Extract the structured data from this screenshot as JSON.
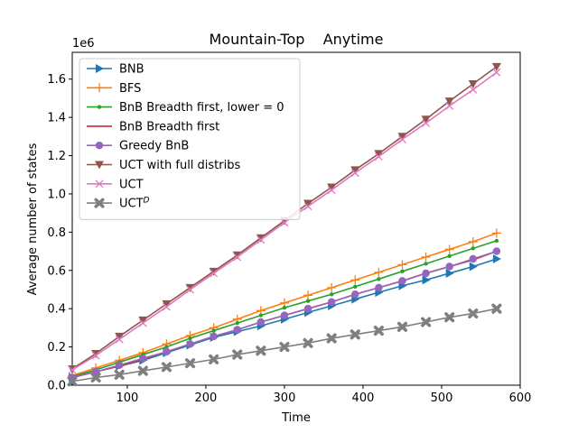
{
  "chart_data": {
    "type": "line",
    "title": "Mountain-Top    Anytime",
    "xlabel": "Time",
    "ylabel": "Average number of states",
    "y_multiplier_label": "1e6",
    "xlim": [
      30,
      600
    ],
    "ylim": [
      0,
      1.74
    ],
    "xticks": [
      100,
      200,
      300,
      400,
      500,
      600
    ],
    "yticks": [
      0.0,
      0.2,
      0.4,
      0.6,
      0.8,
      1.0,
      1.2,
      1.4,
      1.6
    ],
    "ytick_labels": [
      "0.0",
      "0.2",
      "0.4",
      "0.6",
      "0.8",
      "1.0",
      "1.2",
      "1.4",
      "1.6"
    ],
    "grid": false,
    "legend_position": "upper-left",
    "x": [
      30,
      60,
      90,
      120,
      150,
      180,
      210,
      240,
      270,
      300,
      330,
      360,
      390,
      420,
      450,
      480,
      510,
      540,
      570
    ],
    "series": [
      {
        "name": "BNB",
        "legend_text": "BNB",
        "color": "#1f77b4",
        "marker": "triangle-right",
        "values": [
          0.04,
          0.07,
          0.1,
          0.13,
          0.17,
          0.21,
          0.25,
          0.28,
          0.31,
          0.345,
          0.38,
          0.415,
          0.45,
          0.485,
          0.52,
          0.55,
          0.585,
          0.62,
          0.66
        ]
      },
      {
        "name": "BFS",
        "legend_text": "BFS",
        "color": "#ff7f0e",
        "marker": "plus",
        "values": [
          0.05,
          0.09,
          0.13,
          0.17,
          0.215,
          0.26,
          0.3,
          0.345,
          0.39,
          0.43,
          0.47,
          0.51,
          0.55,
          0.59,
          0.63,
          0.67,
          0.71,
          0.75,
          0.795
        ]
      },
      {
        "name": "BnB Breadth first, lower = 0",
        "legend_text": "BnB Breadth first, lower = 0",
        "color": "#2ca02c",
        "marker": "dot",
        "values": [
          0.045,
          0.08,
          0.12,
          0.16,
          0.2,
          0.245,
          0.285,
          0.325,
          0.365,
          0.405,
          0.44,
          0.475,
          0.515,
          0.555,
          0.595,
          0.635,
          0.675,
          0.715,
          0.755
        ]
      },
      {
        "name": "BnB Breadth first",
        "legend_text": "BnB Breadth first",
        "color": "#d62728",
        "marker": "none",
        "values": [
          0.04,
          0.07,
          0.1,
          0.135,
          0.175,
          0.215,
          0.255,
          0.29,
          0.33,
          0.365,
          0.4,
          0.435,
          0.475,
          0.51,
          0.545,
          0.585,
          0.62,
          0.655,
          0.7
        ]
      },
      {
        "name": "Greedy BnB",
        "legend_text": "Greedy BnB",
        "color": "#9467bd",
        "marker": "circle",
        "values": [
          0.04,
          0.07,
          0.105,
          0.14,
          0.175,
          0.215,
          0.255,
          0.29,
          0.33,
          0.365,
          0.4,
          0.435,
          0.475,
          0.51,
          0.545,
          0.585,
          0.62,
          0.66,
          0.7
        ]
      },
      {
        "name": "UCT with full distribs",
        "legend_text": "UCT with full distribs",
        "color": "#8c564b",
        "marker": "triangle-down",
        "values": [
          0.085,
          0.165,
          0.255,
          0.34,
          0.425,
          0.51,
          0.595,
          0.68,
          0.77,
          0.86,
          0.95,
          1.035,
          1.125,
          1.21,
          1.3,
          1.39,
          1.485,
          1.575,
          1.665
        ]
      },
      {
        "name": "UCT",
        "legend_text": "UCT",
        "color": "#e377c2",
        "marker": "x",
        "values": [
          0.08,
          0.155,
          0.24,
          0.325,
          0.41,
          0.5,
          0.585,
          0.67,
          0.76,
          0.85,
          0.935,
          1.02,
          1.11,
          1.195,
          1.285,
          1.37,
          1.46,
          1.545,
          1.635
        ]
      },
      {
        "name": "UCT^D",
        "legend_text": "UCT",
        "legend_sup": "D",
        "color": "#7f7f7f",
        "marker": "X",
        "values": [
          0.02,
          0.04,
          0.055,
          0.075,
          0.095,
          0.115,
          0.135,
          0.16,
          0.18,
          0.2,
          0.22,
          0.245,
          0.265,
          0.285,
          0.305,
          0.33,
          0.355,
          0.375,
          0.4
        ]
      }
    ]
  }
}
